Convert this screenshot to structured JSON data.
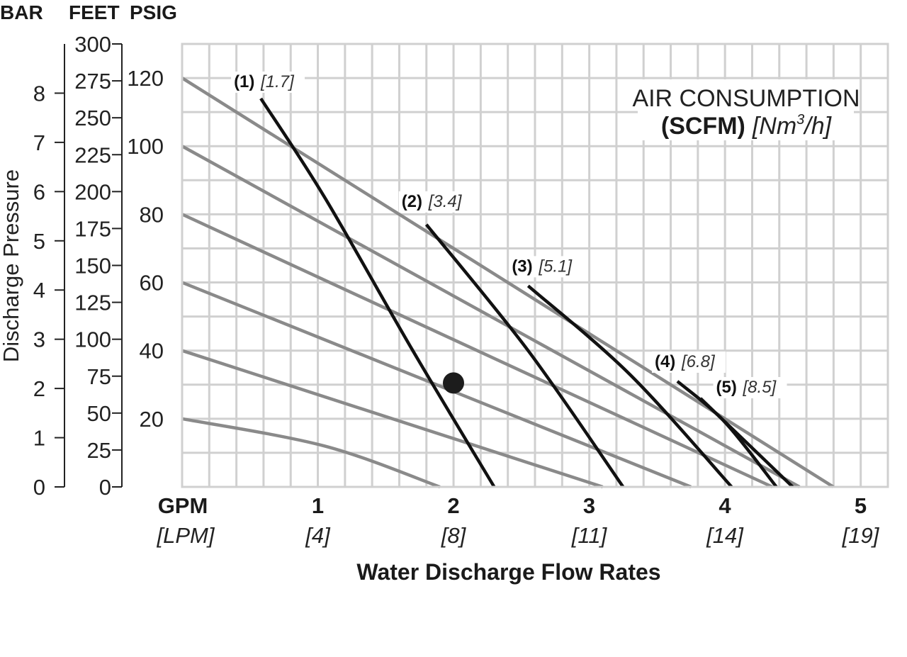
{
  "chart_data": {
    "type": "line",
    "title": "",
    "axes": {
      "units_header": [
        "BAR",
        "FEET",
        "PSIG"
      ],
      "bar": {
        "ticks": [
          "0",
          "1",
          "2",
          "3",
          "4",
          "5",
          "6",
          "7",
          "8"
        ],
        "range": [
          0,
          9
        ]
      },
      "feet": {
        "ticks": [
          "0",
          "25",
          "50",
          "75",
          "100",
          "125",
          "150",
          "175",
          "200",
          "225",
          "250",
          "275",
          "300"
        ],
        "range": [
          0,
          300
        ]
      },
      "psig": {
        "ticks": [
          "20",
          "40",
          "60",
          "80",
          "100",
          "120"
        ],
        "range": [
          0,
          130
        ]
      },
      "ylabel": "Discharge Pressure",
      "xlabel": "Water Discharge Flow Rates",
      "x_unit": "GPM",
      "x_unit_alt": "[LPM]",
      "x_ticks": [
        {
          "gpm": "1",
          "lpm": "[4]"
        },
        {
          "gpm": "2",
          "lpm": "[8]"
        },
        {
          "gpm": "3",
          "lpm": "[11]"
        },
        {
          "gpm": "4",
          "lpm": "[14]"
        },
        {
          "gpm": "5",
          "lpm": "[19]"
        }
      ],
      "xlim": [
        0,
        5.2
      ],
      "grid": true
    },
    "pressure_curves": [
      {
        "points": [
          [
            0,
            120
          ],
          [
            4.8,
            0
          ]
        ]
      },
      {
        "points": [
          [
            0,
            100
          ],
          [
            4.55,
            0
          ]
        ]
      },
      {
        "points": [
          [
            0,
            80
          ],
          [
            4.35,
            0
          ]
        ]
      },
      {
        "points": [
          [
            0,
            60
          ],
          [
            3.75,
            0
          ]
        ]
      },
      {
        "points": [
          [
            0,
            40
          ],
          [
            3.1,
            0
          ]
        ]
      },
      {
        "points": [
          [
            0,
            20
          ],
          [
            1.05,
            12
          ],
          [
            1.9,
            0
          ]
        ]
      }
    ],
    "air_consumption_legend": {
      "title": "AIR CONSUMPTION",
      "unit_bold": "(SCFM)",
      "unit_italic_pre": "[Nm",
      "unit_sup": "3",
      "unit_italic_post": "/h]"
    },
    "air_curves": [
      {
        "name": "(1)",
        "value": "[1.7]",
        "points": [
          [
            0.58,
            114
          ],
          [
            1.05,
            85
          ],
          [
            1.7,
            40
          ],
          [
            2.3,
            0
          ]
        ]
      },
      {
        "name": "(2)",
        "value": "[3.4]",
        "points": [
          [
            1.8,
            77
          ],
          [
            2.55,
            40
          ],
          [
            3.25,
            0
          ]
        ]
      },
      {
        "name": "(3)",
        "value": "[5.1]",
        "points": [
          [
            2.55,
            59
          ],
          [
            3.3,
            33
          ],
          [
            4.05,
            0
          ]
        ]
      },
      {
        "name": "(4)",
        "value": "[6.8]",
        "points": [
          [
            3.65,
            31
          ],
          [
            4.0,
            19
          ],
          [
            4.38,
            0
          ]
        ]
      },
      {
        "name": "(5)",
        "value": "[8.5]",
        "points": [
          [
            3.82,
            26
          ],
          [
            4.5,
            0
          ]
        ]
      }
    ],
    "marker": {
      "x": 2.0,
      "y": 30.5
    }
  }
}
